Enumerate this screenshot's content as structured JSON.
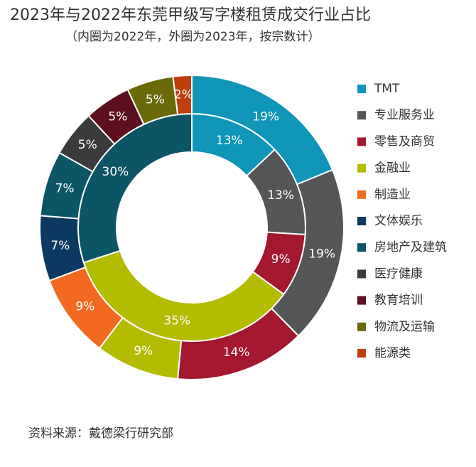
{
  "chart_data": {
    "type": "nested-donut",
    "title": "2023年与2022年东莞甲级写字楼租赁成交行业占比",
    "subtitle": "（内圈为2022年，外圈为2023年，按宗数计）",
    "source": "资料来源：戴德梁行研究部",
    "categories": [
      "TMT",
      "专业服务业",
      "零售及商贸",
      "金融业",
      "制造业",
      "文体娱乐",
      "房地产及建筑",
      "医疗健康",
      "教育培训",
      "物流及运输",
      "能源类"
    ],
    "colors": [
      "#0f95b7",
      "#545658",
      "#a3182f",
      "#b3bc00",
      "#f26a22",
      "#0b3962",
      "#0c5566",
      "#3a3b3d",
      "#5c0f1e",
      "#6a6a0b",
      "#bf3f0c"
    ],
    "series": [
      {
        "values": [
          13,
          13,
          9,
          35,
          null,
          null,
          30,
          null,
          null,
          null,
          null
        ],
        "value_labels": [
          "13%",
          "13%",
          "9%",
          "35%",
          null,
          null,
          "30%",
          null,
          null,
          null,
          null
        ]
      },
      {
        "values": [
          19,
          19,
          14,
          9,
          9,
          7,
          7,
          5,
          5,
          5,
          2
        ],
        "value_labels": [
          "19%",
          "19%",
          "14%",
          "9%",
          "9%",
          "7%",
          "7%",
          "5%",
          "5%",
          "5%",
          "2%"
        ]
      }
    ],
    "legend": "right"
  }
}
